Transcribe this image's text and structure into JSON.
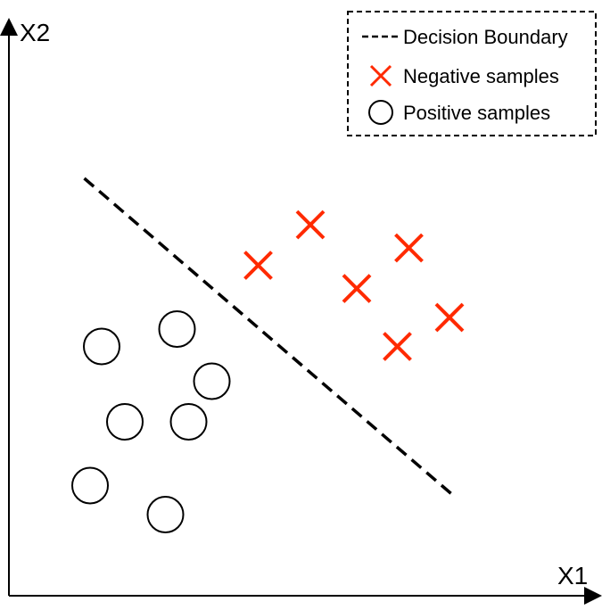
{
  "chart_data": {
    "type": "scatter",
    "title": "",
    "xlabel": "X1",
    "ylabel": "X2",
    "xlim": [
      0,
      10
    ],
    "ylim": [
      0,
      10
    ],
    "grid": false,
    "legend_position": "top-right",
    "series": [
      {
        "name": "Negative samples",
        "marker": "x",
        "color": "#ff2a00",
        "points": [
          {
            "x": 4.3,
            "y": 5.7
          },
          {
            "x": 5.2,
            "y": 6.4
          },
          {
            "x": 6.0,
            "y": 5.3
          },
          {
            "x": 6.9,
            "y": 6.0
          },
          {
            "x": 6.7,
            "y": 4.3
          },
          {
            "x": 7.6,
            "y": 4.8
          }
        ]
      },
      {
        "name": "Positive samples",
        "marker": "circle",
        "color": "#000000",
        "points": [
          {
            "x": 1.6,
            "y": 4.3
          },
          {
            "x": 2.9,
            "y": 4.6
          },
          {
            "x": 3.5,
            "y": 3.7
          },
          {
            "x": 2.0,
            "y": 3.0
          },
          {
            "x": 3.1,
            "y": 3.0
          },
          {
            "x": 1.4,
            "y": 1.9
          },
          {
            "x": 2.7,
            "y": 1.4
          }
        ]
      }
    ],
    "boundary": {
      "name": "Decision Boundary",
      "style": "dashed",
      "color": "#000000",
      "points": [
        {
          "x": 1.3,
          "y": 7.2
        },
        {
          "x": 7.7,
          "y": 1.7
        }
      ]
    }
  }
}
